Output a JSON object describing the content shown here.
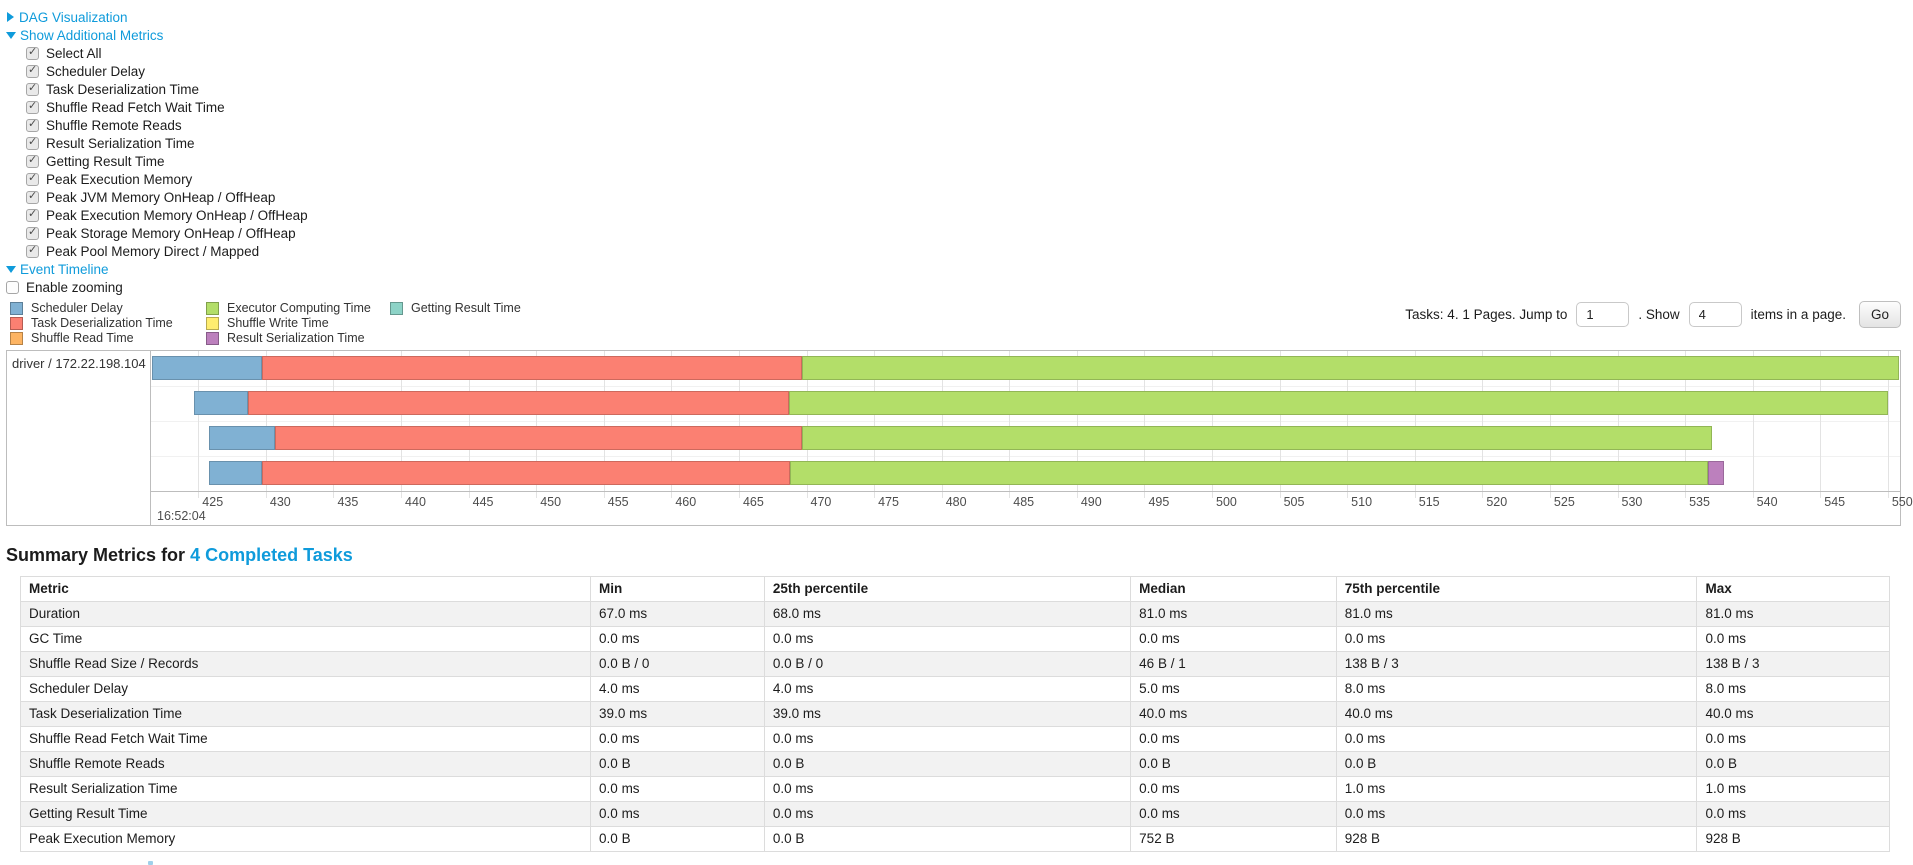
{
  "nav": {
    "dag": {
      "label": "DAG Visualization"
    },
    "metrics_toggle": {
      "label": "Show Additional Metrics"
    },
    "checkboxes": [
      {
        "label": "Select All",
        "checked": true
      },
      {
        "label": "Scheduler Delay",
        "checked": true
      },
      {
        "label": "Task Deserialization Time",
        "checked": true
      },
      {
        "label": "Shuffle Read Fetch Wait Time",
        "checked": true
      },
      {
        "label": "Shuffle Remote Reads",
        "checked": true
      },
      {
        "label": "Result Serialization Time",
        "checked": true
      },
      {
        "label": "Getting Result Time",
        "checked": true
      },
      {
        "label": "Peak Execution Memory",
        "checked": true
      },
      {
        "label": "Peak JVM Memory OnHeap / OffHeap",
        "checked": true
      },
      {
        "label": "Peak Execution Memory OnHeap / OffHeap",
        "checked": true
      },
      {
        "label": "Peak Storage Memory OnHeap / OffHeap",
        "checked": true
      },
      {
        "label": "Peak Pool Memory Direct / Mapped",
        "checked": true
      }
    ],
    "event_timeline": {
      "label": "Event Timeline"
    },
    "enable_zooming": {
      "label": "Enable zooming",
      "checked": false
    }
  },
  "legend": {
    "columns": [
      [
        {
          "label": "Scheduler Delay",
          "color": "#80B1D3"
        },
        {
          "label": "Task Deserialization Time",
          "color": "#FB8072"
        },
        {
          "label": "Shuffle Read Time",
          "color": "#FDB462"
        }
      ],
      [
        {
          "label": "Executor Computing Time",
          "color": "#B3DE69"
        },
        {
          "label": "Shuffle Write Time",
          "color": "#FFED6F"
        },
        {
          "label": "Result Serialization Time",
          "color": "#BC80BD"
        }
      ],
      [
        {
          "label": "Getting Result Time",
          "color": "#8DD3C7"
        }
      ]
    ]
  },
  "pagination": {
    "tasks_text": "Tasks: 4. 1 Pages. Jump to",
    "jump_value": "1",
    "show_text": ". Show",
    "show_value": "4",
    "items_text": "items in a page.",
    "go_label": "Go"
  },
  "chart_data": {
    "type": "timeline",
    "group_label": "driver / 172.22.198.104",
    "axis": {
      "unit": "ms",
      "min": 421.5,
      "max": 550.9,
      "ticks": [
        425,
        430,
        435,
        440,
        445,
        450,
        455,
        460,
        465,
        470,
        475,
        480,
        485,
        490,
        495,
        500,
        505,
        510,
        515,
        520,
        525,
        530,
        535,
        540,
        545,
        550
      ],
      "major_label": "16:52:04"
    },
    "tasks": [
      {
        "segments": [
          {
            "name": "scheduler-delay",
            "color": "#80B1D3",
            "start": 421.6,
            "end": 429.7
          },
          {
            "name": "task-deserialization-time",
            "color": "#FB8072",
            "start": 429.7,
            "end": 469.7
          },
          {
            "name": "executor-computing-time",
            "color": "#B3DE69",
            "start": 469.7,
            "end": 550.8
          }
        ]
      },
      {
        "segments": [
          {
            "name": "scheduler-delay",
            "color": "#80B1D3",
            "start": 424.7,
            "end": 428.7
          },
          {
            "name": "task-deserialization-time",
            "color": "#FB8072",
            "start": 428.7,
            "end": 468.7
          },
          {
            "name": "executor-computing-time",
            "color": "#B3DE69",
            "start": 468.7,
            "end": 550.0
          }
        ]
      },
      {
        "segments": [
          {
            "name": "scheduler-delay",
            "color": "#80B1D3",
            "start": 425.8,
            "end": 430.7
          },
          {
            "name": "task-deserialization-time",
            "color": "#FB8072",
            "start": 430.7,
            "end": 469.7
          },
          {
            "name": "executor-computing-time",
            "color": "#B3DE69",
            "start": 469.7,
            "end": 537.0
          }
        ]
      },
      {
        "segments": [
          {
            "name": "scheduler-delay",
            "color": "#80B1D3",
            "start": 425.8,
            "end": 429.7
          },
          {
            "name": "task-deserialization-time",
            "color": "#FB8072",
            "start": 429.7,
            "end": 468.8
          },
          {
            "name": "executor-computing-time",
            "color": "#B3DE69",
            "start": 468.8,
            "end": 536.7
          },
          {
            "name": "result-serialization-time",
            "color": "#BC80BD",
            "start": 536.7,
            "end": 537.9
          }
        ]
      }
    ]
  },
  "summary": {
    "heading_prefix": "Summary Metrics for ",
    "heading_link": "4 Completed Tasks"
  },
  "table": {
    "columns": [
      "Metric",
      "Min",
      "25th percentile",
      "Median",
      "75th percentile",
      "Max"
    ],
    "col_widths": [
      "30.5%",
      "9.3%",
      "19.6%",
      "11.0%",
      "19.3%",
      "10.3%"
    ],
    "rows": [
      {
        "metric": "Duration",
        "values": [
          "67.0 ms",
          "68.0 ms",
          "81.0 ms",
          "81.0 ms",
          "81.0 ms"
        ]
      },
      {
        "metric": "GC Time",
        "values": [
          "0.0 ms",
          "0.0 ms",
          "0.0 ms",
          "0.0 ms",
          "0.0 ms"
        ]
      },
      {
        "metric": "Shuffle Read Size / Records",
        "values": [
          "0.0 B / 0",
          "0.0 B / 0",
          "46 B / 1",
          "138 B / 3",
          "138 B / 3"
        ]
      },
      {
        "metric": "Scheduler Delay",
        "values": [
          "4.0 ms",
          "4.0 ms",
          "5.0 ms",
          "8.0 ms",
          "8.0 ms"
        ]
      },
      {
        "metric": "Task Deserialization Time",
        "values": [
          "39.0 ms",
          "39.0 ms",
          "40.0 ms",
          "40.0 ms",
          "40.0 ms"
        ]
      },
      {
        "metric": "Shuffle Read Fetch Wait Time",
        "values": [
          "0.0 ms",
          "0.0 ms",
          "0.0 ms",
          "0.0 ms",
          "0.0 ms"
        ]
      },
      {
        "metric": "Shuffle Remote Reads",
        "values": [
          "0.0 B",
          "0.0 B",
          "0.0 B",
          "0.0 B",
          "0.0 B"
        ]
      },
      {
        "metric": "Result Serialization Time",
        "values": [
          "0.0 ms",
          "0.0 ms",
          "0.0 ms",
          "1.0 ms",
          "1.0 ms"
        ]
      },
      {
        "metric": "Getting Result Time",
        "values": [
          "0.0 ms",
          "0.0 ms",
          "0.0 ms",
          "0.0 ms",
          "0.0 ms"
        ]
      },
      {
        "metric": "Peak Execution Memory",
        "values": [
          "0.0 B",
          "0.0 B",
          "752 B",
          "928 B",
          "928 B"
        ]
      }
    ]
  }
}
